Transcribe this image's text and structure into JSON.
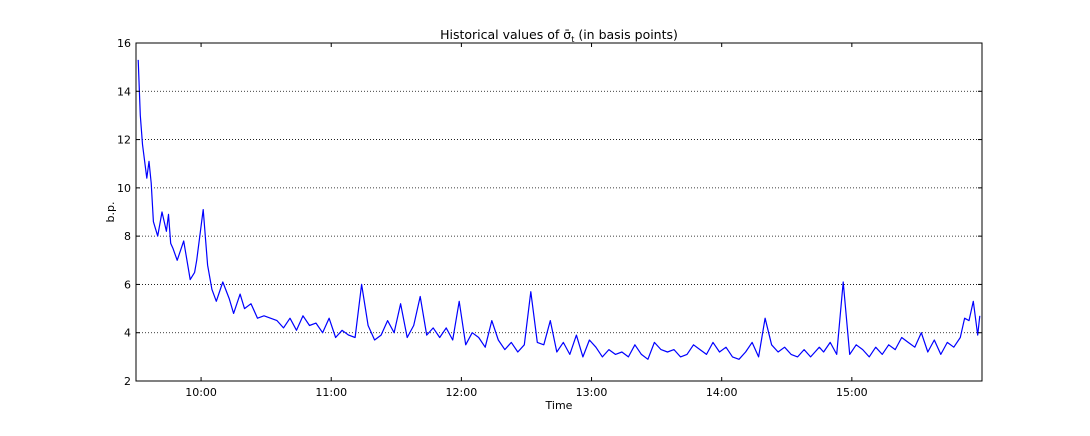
{
  "chart_data": {
    "type": "line",
    "title_prefix": "Historical values of ",
    "title_symbol": "σ̄",
    "title_subscript": "t",
    "title_suffix": " (in basis points)",
    "xlabel": "Time",
    "ylabel": "b.p.",
    "ylim": [
      2,
      16
    ],
    "yticks": [
      2,
      4,
      6,
      8,
      10,
      12,
      14,
      16
    ],
    "xlim": [
      "09:30",
      "16:00"
    ],
    "xticks": [
      "10:00",
      "11:00",
      "12:00",
      "13:00",
      "14:00",
      "15:00"
    ],
    "grid": "y-dotted",
    "line_color": "#0000ff",
    "series": [
      {
        "x": [
          "09:31",
          "09:32",
          "09:33",
          "09:35",
          "09:36",
          "09:37",
          "09:38",
          "09:40",
          "09:42",
          "09:44",
          "09:45",
          "09:46",
          "09:47",
          "09:49",
          "09:52",
          "09:55",
          "09:57",
          "09:58",
          "10:01",
          "10:03",
          "10:05",
          "10:07",
          "10:10",
          "10:13",
          "10:15",
          "10:18",
          "10:20",
          "10:23",
          "10:26",
          "10:29",
          "10:32",
          "10:35",
          "10:38",
          "10:41",
          "10:44",
          "10:47",
          "10:50",
          "10:53",
          "10:56",
          "10:59",
          "11:02",
          "11:05",
          "11:08",
          "11:11",
          "11:14",
          "11:17",
          "11:20",
          "11:23",
          "11:26",
          "11:29",
          "11:32",
          "11:35",
          "11:38",
          "11:41",
          "11:44",
          "11:47",
          "11:50",
          "11:53",
          "11:56",
          "11:59",
          "12:02",
          "12:05",
          "12:08",
          "12:11",
          "12:14",
          "12:17",
          "12:20",
          "12:23",
          "12:26",
          "12:29",
          "12:32",
          "12:35",
          "12:38",
          "12:41",
          "12:44",
          "12:47",
          "12:50",
          "12:53",
          "12:56",
          "12:59",
          "13:02",
          "13:05",
          "13:08",
          "13:11",
          "13:14",
          "13:17",
          "13:20",
          "13:23",
          "13:26",
          "13:29",
          "13:32",
          "13:35",
          "13:38",
          "13:41",
          "13:44",
          "13:47",
          "13:50",
          "13:53",
          "13:56",
          "13:59",
          "14:02",
          "14:05",
          "14:08",
          "14:11",
          "14:14",
          "14:17",
          "14:20",
          "14:23",
          "14:26",
          "14:29",
          "14:32",
          "14:35",
          "14:38",
          "14:41",
          "14:43",
          "14:45",
          "14:47",
          "14:50",
          "14:53",
          "14:56",
          "14:59",
          "15:02",
          "15:05",
          "15:08",
          "15:11",
          "15:14",
          "15:17",
          "15:20",
          "15:23",
          "15:26",
          "15:29",
          "15:32",
          "15:35",
          "15:38",
          "15:41",
          "15:44",
          "15:47",
          "15:50",
          "15:52",
          "15:54",
          "15:56",
          "15:58",
          "15:59"
        ],
        "values": [
          15.3,
          13.0,
          11.8,
          10.4,
          11.1,
          10.2,
          8.6,
          8.0,
          9.0,
          8.2,
          8.9,
          7.7,
          7.5,
          7.0,
          7.8,
          6.2,
          6.5,
          7.0,
          9.1,
          6.8,
          5.8,
          5.3,
          6.1,
          5.4,
          4.8,
          5.6,
          5.0,
          5.2,
          4.6,
          4.7,
          4.6,
          4.5,
          4.2,
          4.6,
          4.1,
          4.7,
          4.3,
          4.4,
          4.0,
          4.6,
          3.8,
          4.1,
          3.9,
          3.8,
          6.0,
          4.3,
          3.7,
          3.9,
          4.5,
          4.0,
          5.2,
          3.8,
          4.3,
          5.5,
          3.9,
          4.2,
          3.8,
          4.2,
          3.7,
          5.3,
          3.5,
          4.0,
          3.8,
          3.4,
          4.5,
          3.7,
          3.3,
          3.6,
          3.2,
          3.5,
          5.7,
          3.6,
          3.5,
          4.5,
          3.2,
          3.6,
          3.1,
          3.9,
          3.0,
          3.7,
          3.4,
          3.0,
          3.3,
          3.1,
          3.2,
          3.0,
          3.5,
          3.1,
          2.9,
          3.6,
          3.3,
          3.2,
          3.3,
          3.0,
          3.1,
          3.5,
          3.3,
          3.1,
          3.6,
          3.2,
          3.4,
          3.0,
          2.9,
          3.2,
          3.6,
          3.0,
          4.6,
          3.5,
          3.2,
          3.4,
          3.1,
          3.0,
          3.3,
          3.0,
          3.2,
          3.4,
          3.2,
          3.6,
          3.1,
          6.1,
          3.1,
          3.5,
          3.3,
          3.0,
          3.4,
          3.1,
          3.5,
          3.3,
          3.8,
          3.6,
          3.4,
          4.0,
          3.2,
          3.7,
          3.1,
          3.6,
          3.4,
          3.8,
          4.6,
          4.5,
          5.3,
          3.9,
          4.7
        ]
      }
    ]
  }
}
